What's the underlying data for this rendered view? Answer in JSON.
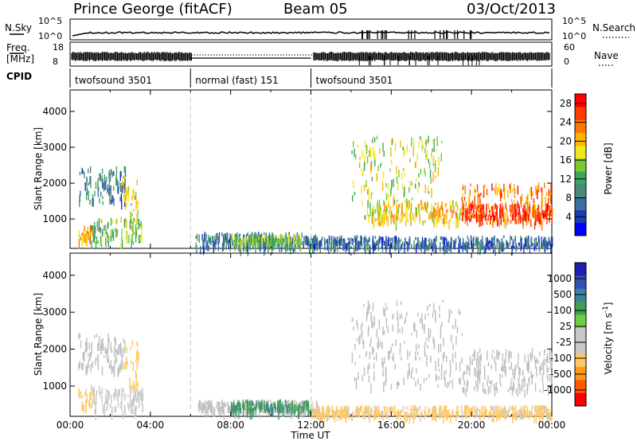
{
  "header": {
    "radar": "Prince George (fitACF)",
    "beam": "Beam 05",
    "date": "03/Oct/2013"
  },
  "strips": {
    "nsky_label": "N.Sky",
    "nsearch_label": "N.Search",
    "nsky_ticks": [
      "10^5",
      "10^0"
    ],
    "nsearch_ticks": [
      "10^5",
      "10^0"
    ],
    "freq_label_line1": "Freq.",
    "freq_label_line2": "[MHz]",
    "freq_ticks": [
      "18",
      "8"
    ],
    "nave_label": "Nave",
    "nave_ticks": [
      "60",
      "0"
    ],
    "cpid_label": "CPID"
  },
  "cpid_segments": [
    {
      "name": "twofsound 3501",
      "start_h": 0,
      "end_h": 6
    },
    {
      "name": "normal (fast) 151",
      "start_h": 6,
      "end_h": 12
    },
    {
      "name": "twofsound 3501",
      "start_h": 12,
      "end_h": 24
    }
  ],
  "colors": {
    "power": [
      "#0000ff",
      "#1a3cb4",
      "#3c6ea0",
      "#4b8a7a",
      "#39a85a",
      "#7ac832",
      "#f0e61e",
      "#ffb400",
      "#ff7800",
      "#ff3c00",
      "#ff0000"
    ],
    "velocity": [
      "#ff0000",
      "#ff5a00",
      "#ff9b14",
      "#ffc864",
      "#c8c8c8",
      "#c8c8c8",
      "#6ecd46",
      "#3ca055",
      "#3c82a0",
      "#3250b4",
      "#1e1eb4"
    ],
    "ground_scatter": "#bebebe"
  },
  "chart_data": [
    {
      "type": "heatmap",
      "title": "",
      "xlabel": "Time UT",
      "ylabel": "Slant Range [km]",
      "x_ticks": [
        "00:00",
        "04:00",
        "08:00",
        "12:00",
        "16:00",
        "20:00",
        "00:00"
      ],
      "y_ticks": [
        "1000",
        "2000",
        "3000",
        "4000"
      ],
      "xlim_hours": [
        0,
        24
      ],
      "ylim_km": [
        180,
        4600
      ],
      "colorbar": {
        "label": "Power [dB]",
        "ticks": [
          "4",
          "8",
          "12",
          "16",
          "20",
          "24",
          "28"
        ],
        "range": [
          0,
          30
        ]
      },
      "regions": [
        {
          "t0": 0.4,
          "t1": 2.8,
          "r0": 1450,
          "r1": 2450,
          "level": 8
        },
        {
          "t0": 0.4,
          "t1": 1.2,
          "r0": 400,
          "r1": 800,
          "level": 22
        },
        {
          "t0": 1.0,
          "t1": 3.6,
          "r0": 300,
          "r1": 1000,
          "level": 14
        },
        {
          "t0": 2.5,
          "t1": 3.4,
          "r0": 900,
          "r1": 2200,
          "level": 18
        },
        {
          "t0": 6.2,
          "t1": 12.3,
          "r0": 200,
          "r1": 600,
          "level": 8
        },
        {
          "t0": 8.0,
          "t1": 11.5,
          "r0": 350,
          "r1": 550,
          "level": 14
        },
        {
          "t0": 14.0,
          "t1": 18.5,
          "r0": 1000,
          "r1": 3300,
          "level": 16
        },
        {
          "t0": 15.0,
          "t1": 19.5,
          "r0": 900,
          "r1": 1500,
          "level": 20
        },
        {
          "t0": 19.5,
          "t1": 24.0,
          "r0": 850,
          "r1": 2000,
          "level": 24
        },
        {
          "t0": 19.5,
          "t1": 24.0,
          "r0": 950,
          "r1": 1400,
          "level": 28
        },
        {
          "t0": 12.0,
          "t1": 24.0,
          "r0": 200,
          "r1": 500,
          "level": 6
        }
      ]
    },
    {
      "type": "heatmap",
      "title": "",
      "xlabel": "Time UT",
      "ylabel": "Slant Range [km]",
      "x_ticks": [
        "00:00",
        "04:00",
        "08:00",
        "12:00",
        "16:00",
        "20:00",
        "00:00"
      ],
      "y_ticks": [
        "1000",
        "2000",
        "3000",
        "4000"
      ],
      "xlim_hours": [
        0,
        24
      ],
      "ylim_km": [
        180,
        4600
      ],
      "colorbar": {
        "label": "Velocity [m s^-1]",
        "ticks": [
          "1000",
          "500",
          "100",
          "25",
          "-25",
          "-100",
          "-500",
          "-1000"
        ],
        "range": [
          -1200,
          1200
        ]
      },
      "regions": [
        {
          "t0": 0.4,
          "t1": 2.8,
          "r0": 1450,
          "r1": 2450,
          "ground": true
        },
        {
          "t0": 0.4,
          "t1": 1.2,
          "r0": 400,
          "r1": 900,
          "value": -300
        },
        {
          "t0": 1.0,
          "t1": 3.6,
          "r0": 300,
          "r1": 1000,
          "value": -60
        },
        {
          "t0": 2.7,
          "t1": 3.4,
          "r0": 900,
          "r1": 2200,
          "value": -200
        },
        {
          "t0": 6.2,
          "t1": 12.3,
          "r0": 300,
          "r1": 600,
          "ground": true
        },
        {
          "t0": 8.0,
          "t1": 12.0,
          "r0": 300,
          "r1": 600,
          "value": 80
        },
        {
          "t0": 14.0,
          "t1": 19.5,
          "r0": 1000,
          "r1": 3300,
          "ground": true
        },
        {
          "t0": 19.5,
          "t1": 24.0,
          "r0": 850,
          "r1": 2000,
          "ground": true
        },
        {
          "t0": 12.0,
          "t1": 24.0,
          "r0": 200,
          "r1": 450,
          "value": -150
        }
      ]
    }
  ]
}
